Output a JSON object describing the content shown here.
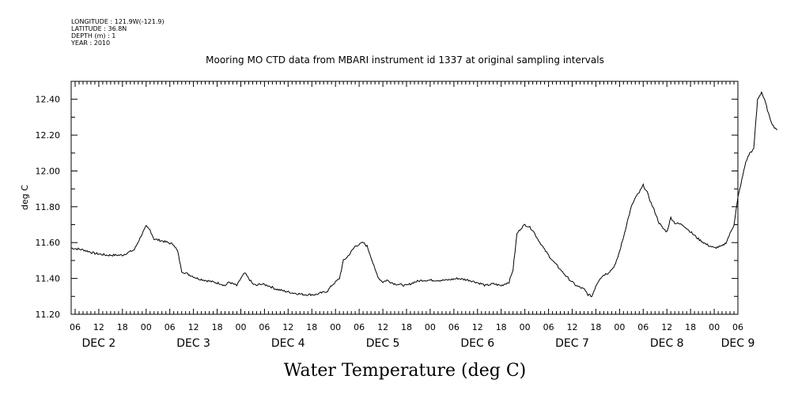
{
  "header": {
    "longitude": "LONGITUDE : 121.9W(-121.9)",
    "latitude": "LATITUDE : 36.8N",
    "depth": "DEPTH (m) : 1",
    "year": "YEAR : 2010"
  },
  "chart_data": {
    "type": "line",
    "title": "Mooring MO CTD data from MBARI instrument id 1337 at original sampling intervals",
    "xlabel": "Water Temperature (deg C)",
    "ylabel": "deg C",
    "ylim": [
      11.2,
      12.5
    ],
    "xlim": [
      "2010-12-02T05:00",
      "2010-12-09T06:00"
    ],
    "x_unit": "hours since 2010-12-02 00:00",
    "y_ticks": [
      "11.20",
      "11.40",
      "11.60",
      "11.80",
      "12.00",
      "12.20",
      "12.40"
    ],
    "x_hour_ticks": [
      "06",
      "12",
      "18",
      "00",
      "06",
      "12",
      "18",
      "00",
      "06",
      "12",
      "18",
      "00",
      "06",
      "12",
      "18",
      "00",
      "06",
      "12",
      "18",
      "00",
      "06",
      "12",
      "18",
      "00",
      "06",
      "12",
      "18",
      "00",
      "06"
    ],
    "day_labels": [
      "DEC  2",
      "DEC  3",
      "DEC  4",
      "DEC  5",
      "DEC  6",
      "DEC  7",
      "DEC  8",
      "DEC  9"
    ],
    "series": [
      {
        "values": [
          [
            5,
            11.57
          ],
          [
            8,
            11.56
          ],
          [
            11,
            11.54
          ],
          [
            14,
            11.53
          ],
          [
            18,
            11.53
          ],
          [
            21,
            11.56
          ],
          [
            23,
            11.65
          ],
          [
            24,
            11.69
          ],
          [
            25,
            11.67
          ],
          [
            26,
            11.62
          ],
          [
            28,
            11.61
          ],
          [
            31,
            11.59
          ],
          [
            32,
            11.55
          ],
          [
            33,
            11.44
          ],
          [
            35,
            11.42
          ],
          [
            37,
            11.4
          ],
          [
            39,
            11.39
          ],
          [
            41,
            11.38
          ],
          [
            43,
            11.37
          ],
          [
            44,
            11.36
          ],
          [
            45,
            11.38
          ],
          [
            47,
            11.36
          ],
          [
            48,
            11.4
          ],
          [
            49,
            11.43
          ],
          [
            50,
            11.4
          ],
          [
            51,
            11.37
          ],
          [
            52,
            11.36
          ],
          [
            53,
            11.37
          ],
          [
            55,
            11.36
          ],
          [
            57,
            11.34
          ],
          [
            59,
            11.33
          ],
          [
            61,
            11.32
          ],
          [
            64,
            11.31
          ],
          [
            67,
            11.31
          ],
          [
            70,
            11.33
          ],
          [
            71,
            11.36
          ],
          [
            73,
            11.4
          ],
          [
            74,
            11.5
          ],
          [
            75,
            11.52
          ],
          [
            76,
            11.55
          ],
          [
            77,
            11.58
          ],
          [
            79,
            11.6
          ],
          [
            80,
            11.58
          ],
          [
            81,
            11.52
          ],
          [
            82,
            11.45
          ],
          [
            83,
            11.4
          ],
          [
            84,
            11.38
          ],
          [
            85,
            11.39
          ],
          [
            87,
            11.37
          ],
          [
            90,
            11.36
          ],
          [
            92,
            11.38
          ],
          [
            94,
            11.39
          ],
          [
            97,
            11.39
          ],
          [
            100,
            11.39
          ],
          [
            103,
            11.4
          ],
          [
            106,
            11.39
          ],
          [
            109,
            11.37
          ],
          [
            110,
            11.36
          ],
          [
            112,
            11.37
          ],
          [
            114,
            11.36
          ],
          [
            116,
            11.38
          ],
          [
            117,
            11.45
          ],
          [
            118,
            11.65
          ],
          [
            119,
            11.68
          ],
          [
            120,
            11.7
          ],
          [
            121,
            11.69
          ],
          [
            122,
            11.67
          ],
          [
            123,
            11.63
          ],
          [
            125,
            11.56
          ],
          [
            127,
            11.5
          ],
          [
            129,
            11.45
          ],
          [
            131,
            11.4
          ],
          [
            133,
            11.36
          ],
          [
            135,
            11.34
          ],
          [
            136,
            11.31
          ],
          [
            137,
            11.3
          ],
          [
            138,
            11.36
          ],
          [
            139,
            11.4
          ],
          [
            140,
            11.42
          ],
          [
            141,
            11.43
          ],
          [
            142,
            11.45
          ],
          [
            143,
            11.48
          ],
          [
            144,
            11.55
          ],
          [
            145,
            11.63
          ],
          [
            146,
            11.72
          ],
          [
            147,
            11.8
          ],
          [
            148,
            11.85
          ],
          [
            149,
            11.88
          ],
          [
            150,
            11.92
          ],
          [
            151,
            11.88
          ],
          [
            152,
            11.82
          ],
          [
            153,
            11.77
          ],
          [
            154,
            11.71
          ],
          [
            155,
            11.68
          ],
          [
            156,
            11.66
          ],
          [
            157,
            11.74
          ],
          [
            158,
            11.71
          ],
          [
            160,
            11.7
          ],
          [
            162,
            11.66
          ],
          [
            164,
            11.62
          ],
          [
            166,
            11.59
          ],
          [
            168,
            11.57
          ],
          [
            170,
            11.58
          ],
          [
            171,
            11.6
          ],
          [
            172,
            11.65
          ],
          [
            173,
            11.7
          ],
          [
            174,
            11.85
          ],
          [
            175,
            11.95
          ],
          [
            176,
            12.05
          ],
          [
            177,
            12.1
          ],
          [
            178,
            12.12
          ],
          [
            179,
            12.4
          ],
          [
            180,
            12.44
          ],
          [
            181,
            12.38
          ],
          [
            182,
            12.3
          ],
          [
            183,
            12.25
          ],
          [
            184,
            12.23
          ]
        ]
      }
    ],
    "grid": false,
    "legend": "none"
  }
}
